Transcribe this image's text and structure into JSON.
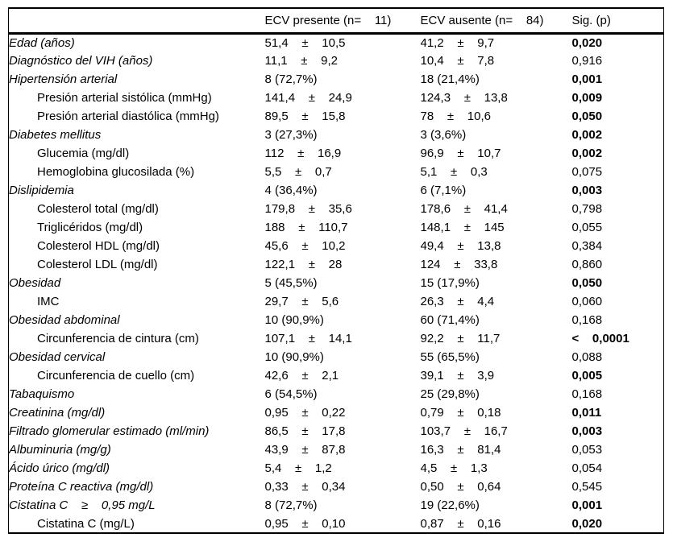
{
  "table": {
    "headers": {
      "variable": "",
      "ecv_presente": "ECV presente (n=    11)",
      "ecv_ausente": "ECV ausente (n=    84)",
      "sig": "Sig. (p)"
    },
    "rows": [
      {
        "label": "Edad (años)",
        "it": true,
        "ind": false,
        "c1": "51,4    ±    10,5",
        "c2": "41,2    ±    9,7",
        "p": "0,020",
        "pb": true
      },
      {
        "label": "Diagnóstico del VIH (años)",
        "it": true,
        "ind": false,
        "c1": "11,1    ±    9,2",
        "c2": "10,4    ±    7,8",
        "p": "0,916",
        "pb": false
      },
      {
        "label": "Hipertensión arterial",
        "it": true,
        "ind": false,
        "c1": "8 (72,7%)",
        "c2": "18 (21,4%)",
        "p": "0,001",
        "pb": true
      },
      {
        "label": "Presión arterial sistólica (mmHg)",
        "it": false,
        "ind": true,
        "c1": "141,4    ±    24,9",
        "c2": "124,3    ±    13,8",
        "p": "0,009",
        "pb": true
      },
      {
        "label": "Presión arterial diastólica (mmHg)",
        "it": false,
        "ind": true,
        "c1": "89,5    ±    15,8",
        "c2": "78    ±    10,6",
        "p": "0,050",
        "pb": true
      },
      {
        "label": "Diabetes mellitus",
        "it": true,
        "ind": false,
        "c1": "3 (27,3%)",
        "c2": "3 (3,6%)",
        "p": "0,002",
        "pb": true
      },
      {
        "label": "Glucemia (mg/dl)",
        "it": false,
        "ind": true,
        "c1": "112    ±    16,9",
        "c2": "96,9    ±    10,7",
        "p": "0,002",
        "pb": true
      },
      {
        "label": "Hemoglobina glucosilada (%)",
        "it": false,
        "ind": true,
        "c1": "5,5    ±    0,7",
        "c2": "5,1    ±    0,3",
        "p": "0,075",
        "pb": false
      },
      {
        "label": "Dislipidemia",
        "it": true,
        "ind": false,
        "c1": "4 (36,4%)",
        "c2": "6 (7,1%)",
        "p": "0,003",
        "pb": true
      },
      {
        "label": "Colesterol total (mg/dl)",
        "it": false,
        "ind": true,
        "c1": "179,8    ±    35,6",
        "c2": "178,6    ±    41,4",
        "p": "0,798",
        "pb": false
      },
      {
        "label": "Triglicéridos (mg/dl)",
        "it": false,
        "ind": true,
        "c1": "188    ±    110,7",
        "c2": "148,1    ±    145",
        "p": "0,055",
        "pb": false
      },
      {
        "label": "Colesterol HDL (mg/dl)",
        "it": false,
        "ind": true,
        "c1": "45,6    ±    10,2",
        "c2": "49,4    ±    13,8",
        "p": "0,384",
        "pb": false
      },
      {
        "label": "Colesterol LDL (mg/dl)",
        "it": false,
        "ind": true,
        "c1": "122,1    ±    28",
        "c2": "124    ±    33,8",
        "p": "0,860",
        "pb": false
      },
      {
        "label": "Obesidad",
        "it": true,
        "ind": false,
        "c1": "5 (45,5%)",
        "c2": "15 (17,9%)",
        "p": "0,050",
        "pb": true
      },
      {
        "label": "IMC",
        "it": false,
        "ind": true,
        "c1": "29,7    ±    5,6",
        "c2": "26,3    ±    4,4",
        "p": "0,060",
        "pb": false
      },
      {
        "label": "Obesidad abdominal",
        "it": true,
        "ind": false,
        "c1": "10 (90,9%)",
        "c2": "60 (71,4%)",
        "p": "0,168",
        "pb": false
      },
      {
        "label": "Circunferencia de cintura (cm)",
        "it": false,
        "ind": true,
        "c1": "107,1    ±    14,1",
        "c2": "92,2    ±    11,7",
        "p": "<    0,0001",
        "pb": true
      },
      {
        "label": "Obesidad cervical",
        "it": true,
        "ind": false,
        "c1": "10 (90,9%)",
        "c2": "55 (65,5%)",
        "p": "0,088",
        "pb": false
      },
      {
        "label": "Circunferencia de cuello (cm)",
        "it": false,
        "ind": true,
        "c1": "42,6    ±    2,1",
        "c2": "39,1    ±    3,9",
        "p": "0,005",
        "pb": true
      },
      {
        "label": "Tabaquismo",
        "it": true,
        "ind": false,
        "c1": "6 (54,5%)",
        "c2": "25 (29,8%)",
        "p": "0,168",
        "pb": false
      },
      {
        "label": "Creatinina (mg/dl)",
        "it": true,
        "ind": false,
        "c1": "0,95    ±    0,22",
        "c2": "0,79    ±    0,18",
        "p": "0,011",
        "pb": true
      },
      {
        "label": "Filtrado glomerular estimado (ml/min)",
        "it": true,
        "ind": false,
        "c1": "86,5    ±    17,8",
        "c2": "103,7    ±    16,7",
        "p": "0,003",
        "pb": true
      },
      {
        "label": "Albuminuria (mg/g)",
        "it": true,
        "ind": false,
        "c1": "43,9    ±    87,8",
        "c2": "16,3    ±    81,4",
        "p": "0,053",
        "pb": false
      },
      {
        "label": "Ácido úrico (mg/dl)",
        "it": true,
        "ind": false,
        "c1": "5,4    ±    1,2",
        "c2": "4,5    ±    1,3",
        "p": "0,054",
        "pb": false
      },
      {
        "label": "Proteína C reactiva (mg/dl)",
        "it": true,
        "ind": false,
        "c1": "0,33    ±    0,34",
        "c2": "0,50    ±    0,64",
        "p": "0,545",
        "pb": false
      },
      {
        "label": "Cistatina C    ≥    0,95 mg/L",
        "it": true,
        "ind": false,
        "c1": "8 (72,7%)",
        "c2": "19 (22,6%)",
        "p": "0,001",
        "pb": true
      },
      {
        "label": "Cistatina C (mg/L)",
        "it": false,
        "ind": true,
        "c1": "0,95    ±    0,10",
        "c2": "0,87    ±    0,16",
        "p": "0,020",
        "pb": true
      }
    ]
  }
}
